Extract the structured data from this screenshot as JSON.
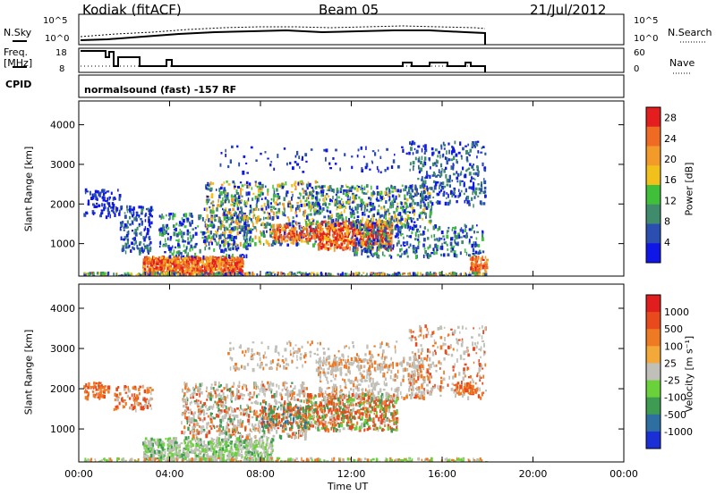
{
  "header": {
    "station": "Kodiak (fitACF)",
    "beam": "Beam 05",
    "date": "21/Jul/2012"
  },
  "top_panels": {
    "nsky_label": "N.Sky",
    "nsearch_label": "N.Search",
    "noise_ticks": [
      "10^5",
      "10^0"
    ],
    "freq_label": "Freq.",
    "freq_unit": "[MHz]",
    "freq_ticks": [
      "18",
      "8"
    ],
    "nave_label": "Nave",
    "nave_ticks": [
      "60",
      "0"
    ],
    "cpid_label": "CPID",
    "cpid_value": "normalsound (fast) -157 RF"
  },
  "chart_data": [
    {
      "type": "heatmap",
      "quantity": "Power",
      "ylabel": "Slant Range [km]",
      "xlabel": "Time UT",
      "x_ticks": [
        "00:00",
        "04:00",
        "08:00",
        "12:00",
        "16:00",
        "20:00",
        "00:00"
      ],
      "xlim_hours": [
        0,
        24
      ],
      "ylim_km": [
        180,
        4600
      ],
      "y_ticks": [
        "1000",
        "2000",
        "3000",
        "4000"
      ],
      "colorbar": {
        "label": "Power [dB]",
        "ticks": [
          "4",
          "8",
          "12",
          "16",
          "20",
          "24",
          "28"
        ],
        "range": [
          0,
          30
        ],
        "colors": [
          "#0f17e8",
          "#2a4fb0",
          "#3f8c6c",
          "#3fbf3a",
          "#f2c01a",
          "#f29a2a",
          "#ef6b24",
          "#e41e1e"
        ]
      },
      "data_extent_hours": [
        0,
        18
      ],
      "features": [
        {
          "hour_start": 2.8,
          "hour_end": 7.0,
          "range_km": [
            280,
            700
          ],
          "level": "high"
        },
        {
          "hour_start": 11.0,
          "hour_end": 13.5,
          "range_km": [
            900,
            1500
          ],
          "level": "high"
        },
        {
          "hour_start": 5.0,
          "hour_end": 16.0,
          "range_km": [
            1000,
            2400
          ],
          "level": "medium"
        }
      ]
    },
    {
      "type": "heatmap",
      "quantity": "Velocity",
      "ylabel": "Slant Range [km]",
      "xlabel": "Time UT",
      "x_ticks": [
        "00:00",
        "04:00",
        "08:00",
        "12:00",
        "16:00",
        "20:00",
        "00:00"
      ],
      "xlim_hours": [
        0,
        24
      ],
      "ylim_km": [
        180,
        4600
      ],
      "y_ticks": [
        "1000",
        "2000",
        "3000",
        "4000"
      ],
      "colorbar": {
        "label": "Velocity [m s⁻¹]",
        "ticks": [
          "1000",
          "500",
          "100",
          "25",
          "-25",
          "-100",
          "-500",
          "-1000"
        ],
        "colors": [
          "#1a2fd6",
          "#2c6fa0",
          "#3e9c52",
          "#6bd13a",
          "#c0c0b8",
          "#f2a93a",
          "#ef7a24",
          "#e84a1e",
          "#e01e1e"
        ]
      },
      "data_extent_hours": [
        0,
        18
      ]
    }
  ]
}
